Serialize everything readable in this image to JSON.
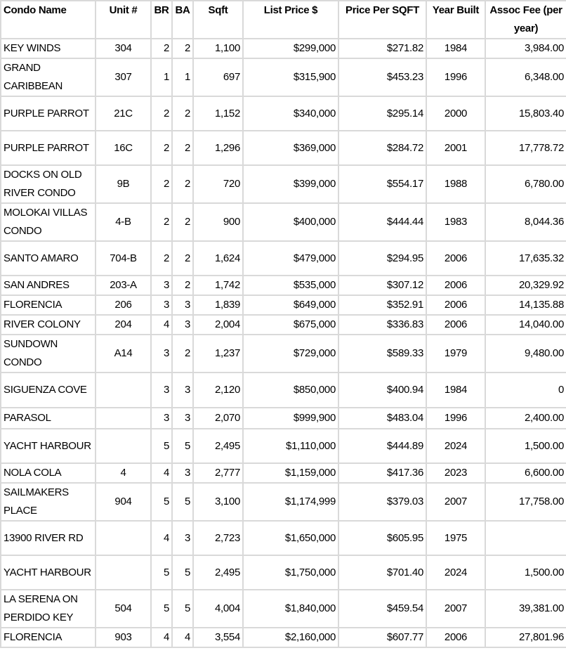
{
  "table": {
    "headers": [
      "Condo Name",
      "Unit #",
      "BR",
      "BA",
      "Sqft",
      "List Price $",
      "Price Per SQFT",
      "Year Built",
      "Assoc Fee (per year)"
    ],
    "rows": [
      [
        "KEY WINDS",
        "304",
        "2",
        "2",
        "1,100",
        "$299,000",
        "$271.82",
        "1984",
        "3,984.00"
      ],
      [
        "GRAND CARIBBEAN",
        "307",
        "1",
        "1",
        "697",
        "$315,900",
        "$453.23",
        "1996",
        "6,348.00"
      ],
      [
        "PURPLE PARROT",
        "21C",
        "2",
        "2",
        "1,152",
        "$340,000",
        "$295.14",
        "2000",
        "15,803.40"
      ],
      [
        "PURPLE PARROT",
        "16C",
        "2",
        "2",
        "1,296",
        "$369,000",
        "$284.72",
        "2001",
        "17,778.72"
      ],
      [
        "DOCKS ON OLD RIVER CONDO",
        "9B",
        "2",
        "2",
        "720",
        "$399,000",
        "$554.17",
        "1988",
        "6,780.00"
      ],
      [
        "MOLOKAI VILLAS CONDO",
        "4-B",
        "2",
        "2",
        "900",
        "$400,000",
        "$444.44",
        "1983",
        "8,044.36"
      ],
      [
        "SANTO AMARO",
        "704-B",
        "2",
        "2",
        "1,624",
        "$479,000",
        "$294.95",
        "2006",
        "17,635.32"
      ],
      [
        "SAN ANDRES",
        "203-A",
        "3",
        "2",
        "1,742",
        "$535,000",
        "$307.12",
        "2006",
        "20,329.92"
      ],
      [
        "FLORENCIA",
        "206",
        "3",
        "3",
        "1,839",
        "$649,000",
        "$352.91",
        "2006",
        "14,135.88"
      ],
      [
        "RIVER COLONY",
        "204",
        "4",
        "3",
        "2,004",
        "$675,000",
        "$336.83",
        "2006",
        "14,040.00"
      ],
      [
        "SUNDOWN CONDO",
        "A14",
        "3",
        "2",
        "1,237",
        "$729,000",
        "$589.33",
        "1979",
        "9,480.00"
      ],
      [
        "SIGUENZA COVE",
        "",
        "3",
        "3",
        "2,120",
        "$850,000",
        "$400.94",
        "1984",
        "0"
      ],
      [
        "PARASOL",
        "",
        "3",
        "3",
        "2,070",
        "$999,900",
        "$483.04",
        "1996",
        "2,400.00"
      ],
      [
        "YACHT HARBOUR",
        "",
        "5",
        "5",
        "2,495",
        "$1,110,000",
        "$444.89",
        "2024",
        "1,500.00"
      ],
      [
        "NOLA COLA",
        "4",
        "4",
        "3",
        "2,777",
        "$1,159,000",
        "$417.36",
        "2023",
        "6,600.00"
      ],
      [
        "SAILMAKERS PLACE",
        "904",
        "5",
        "5",
        "3,100",
        "$1,174,999",
        "$379.03",
        "2007",
        "17,758.00"
      ],
      [
        "13900 RIVER RD",
        "",
        "4",
        "3",
        "2,723",
        "$1,650,000",
        "$605.95",
        "1975",
        ""
      ],
      [
        "YACHT HARBOUR",
        "",
        "5",
        "5",
        "2,495",
        "$1,750,000",
        "$701.40",
        "2024",
        "1,500.00"
      ],
      [
        "LA SERENA ON PERDIDO KEY",
        "504",
        "5",
        "5",
        "4,004",
        "$1,840,000",
        "$459.54",
        "2007",
        "39,381.00"
      ],
      [
        "FLORENCIA",
        "903",
        "4",
        "4",
        "3,554",
        "$2,160,000",
        "$607.77",
        "2006",
        "27,801.96"
      ]
    ]
  }
}
